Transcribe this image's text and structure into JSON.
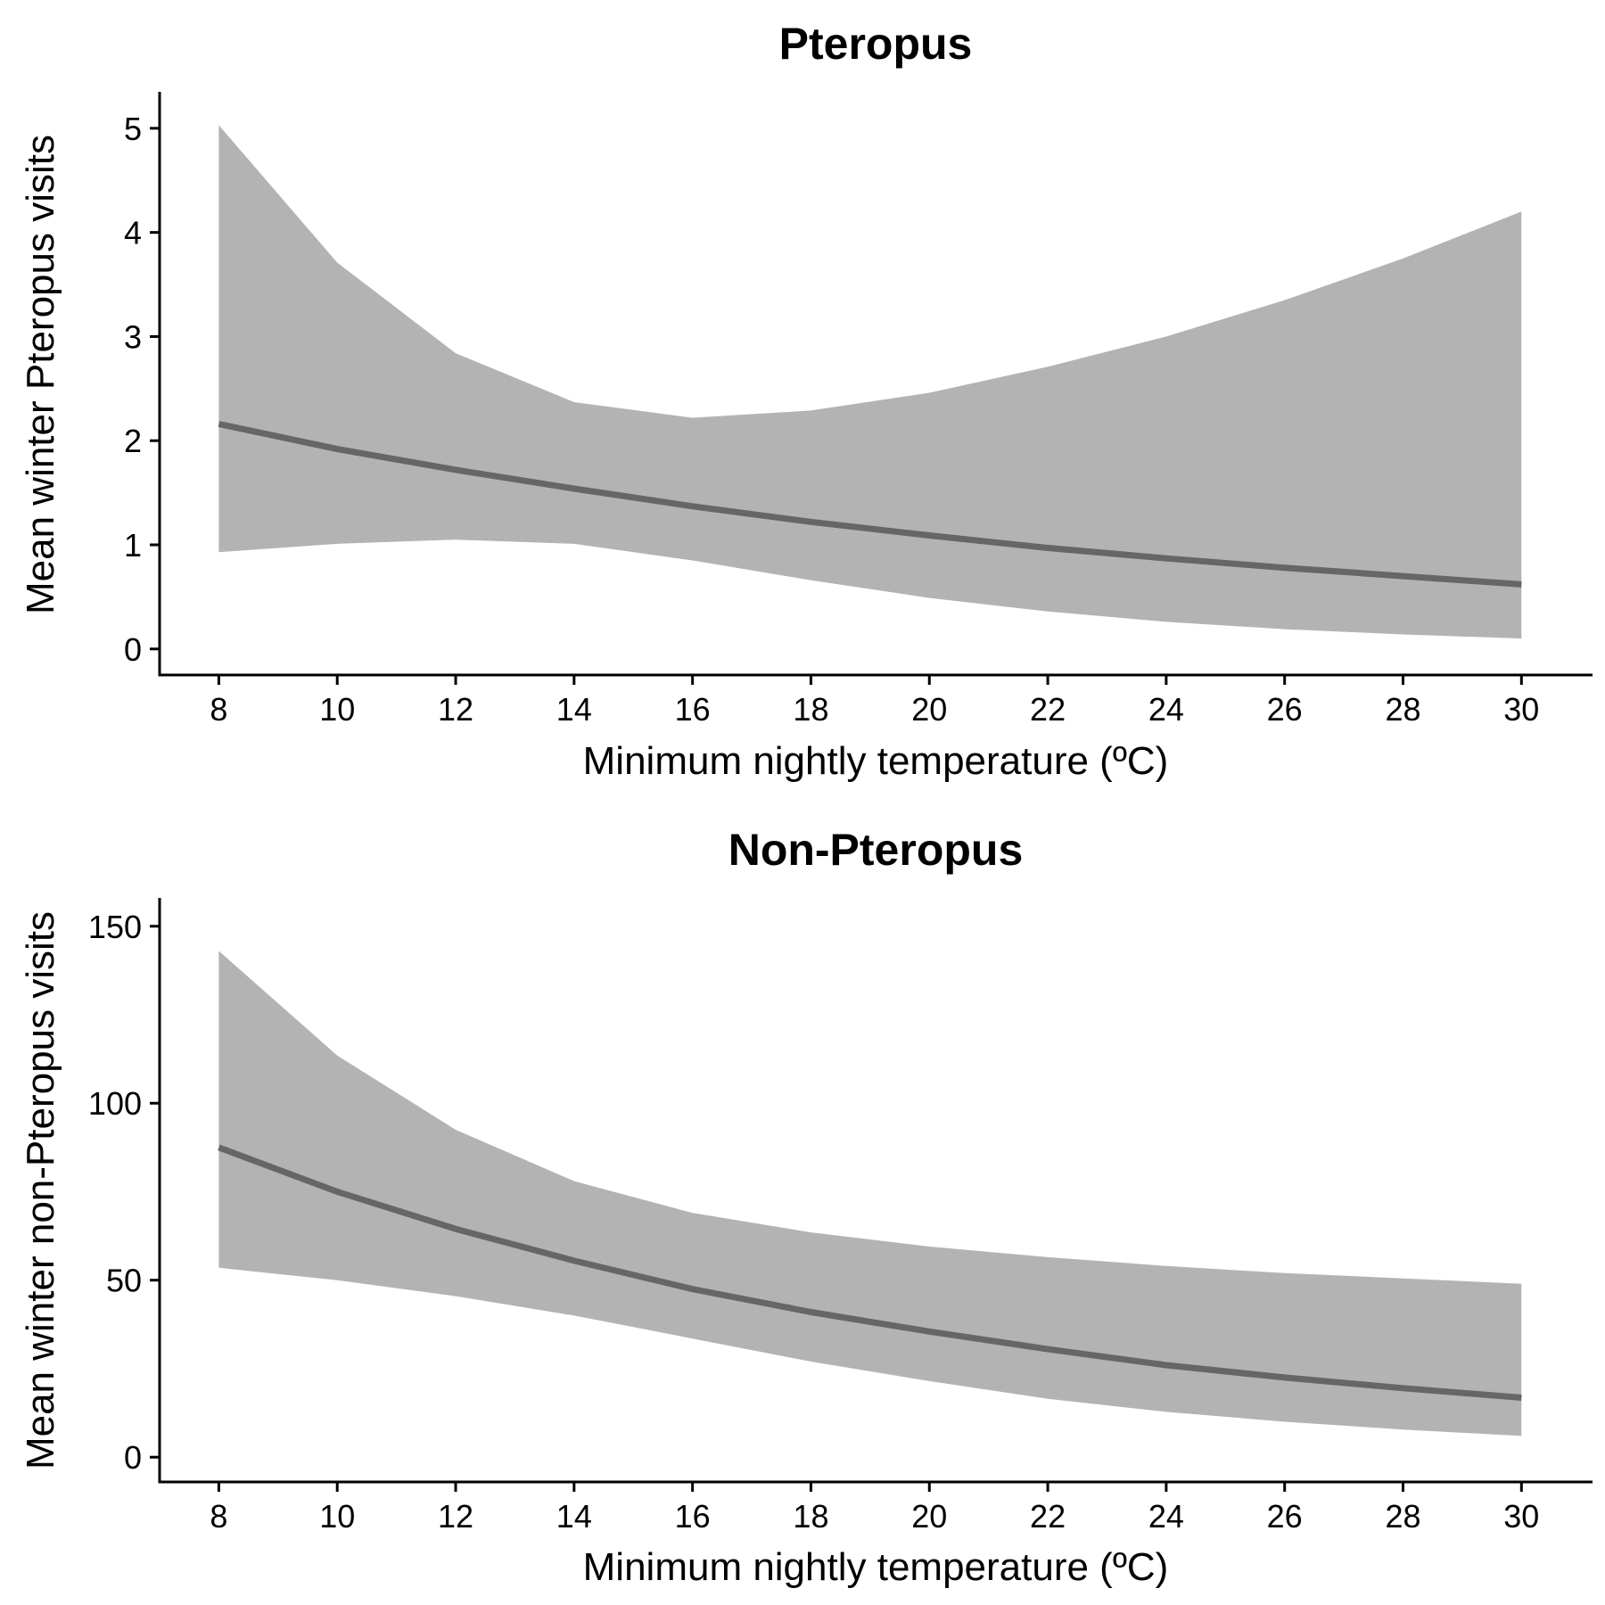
{
  "chart_data": [
    {
      "type": "line",
      "title": "Pteropus",
      "xlabel": "Minimum nightly temperature (ºC)",
      "ylabel": "Mean winter Pteropus visits",
      "xlim": [
        7,
        31.2
      ],
      "ylim": [
        -0.25,
        5.35
      ],
      "xticks": [
        8,
        10,
        12,
        14,
        16,
        18,
        20,
        22,
        24,
        26,
        28,
        30
      ],
      "yticks": [
        0,
        1,
        2,
        3,
        4,
        5
      ],
      "grid": false,
      "legend": "none",
      "x": [
        8,
        10,
        12,
        14,
        16,
        18,
        20,
        22,
        24,
        26,
        28,
        30
      ],
      "series": [
        {
          "values": [
            2.16,
            1.92,
            1.72,
            1.54,
            1.37,
            1.22,
            1.09,
            0.97,
            0.87,
            0.78,
            0.7,
            0.62
          ],
          "lower": [
            0.93,
            1.01,
            1.05,
            1.01,
            0.85,
            0.66,
            0.49,
            0.36,
            0.26,
            0.19,
            0.14,
            0.1
          ],
          "upper": [
            5.03,
            3.71,
            2.84,
            2.37,
            2.22,
            2.29,
            2.46,
            2.71,
            3.0,
            3.35,
            3.75,
            4.2
          ]
        }
      ],
      "colors": {
        "line": "#666666",
        "ribbon": "#b3b3b3"
      }
    },
    {
      "type": "line",
      "title": "Non-Pteropus",
      "xlabel": "Minimum nightly temperature (ºC)",
      "ylabel": "Mean winter non-Pteropus visits",
      "xlim": [
        7,
        31.2
      ],
      "ylim": [
        -7,
        158
      ],
      "xticks": [
        8,
        10,
        12,
        14,
        16,
        18,
        20,
        22,
        24,
        26,
        28,
        30
      ],
      "yticks": [
        0,
        50,
        100,
        150
      ],
      "grid": false,
      "legend": "none",
      "x": [
        8,
        10,
        12,
        14,
        16,
        18,
        20,
        22,
        24,
        26,
        28,
        30
      ],
      "series": [
        {
          "values": [
            87.5,
            75.0,
            64.5,
            55.5,
            47.5,
            41.0,
            35.5,
            30.5,
            26.0,
            22.5,
            19.5,
            16.8
          ],
          "lower": [
            53.5,
            50.0,
            45.5,
            40.0,
            33.5,
            27.0,
            21.5,
            16.5,
            12.8,
            10.0,
            7.8,
            6.0
          ],
          "upper": [
            143.0,
            113.5,
            92.5,
            78.0,
            69.0,
            63.5,
            59.5,
            56.5,
            54.0,
            52.0,
            50.5,
            49.0
          ]
        }
      ],
      "colors": {
        "line": "#666666",
        "ribbon": "#b3b3b3"
      }
    }
  ]
}
